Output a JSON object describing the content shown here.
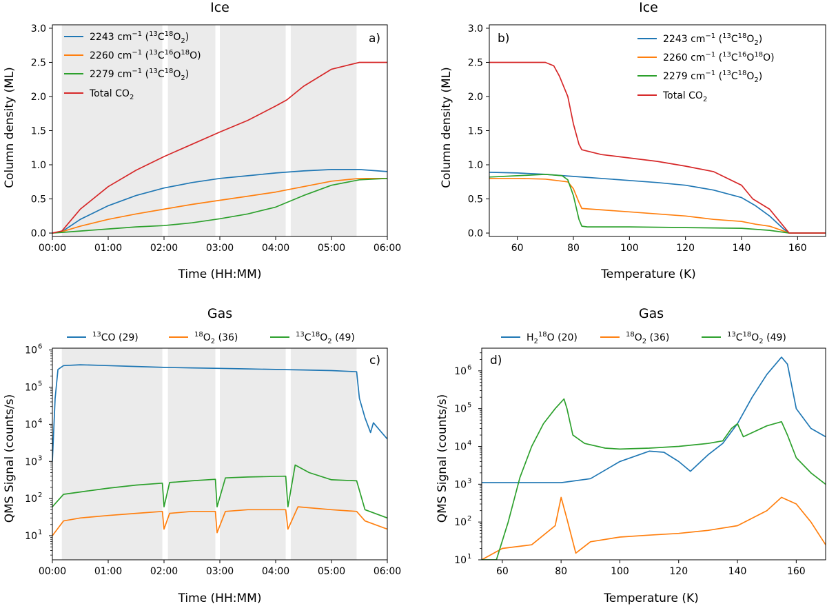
{
  "figure": {
    "panels": [
      {
        "id": "a",
        "panel_label": "a)",
        "title": "Ice",
        "xlabel": "Time (HH:MM)",
        "ylabel": "Column density (ML)",
        "x_ticks": [
          "00:00",
          "01:00",
          "02:00",
          "03:00",
          "04:00",
          "05:00",
          "06:00"
        ],
        "y_ticks": [
          "0.0",
          "0.5",
          "1.0",
          "1.5",
          "2.0",
          "2.5",
          "3.0"
        ],
        "legend": [
          {
            "main": "2243 cm",
            "exp": "−1",
            "mid": " (",
            "iso1": "13",
            "el1": "C",
            "iso2": "18",
            "el2": "O",
            "sub": "2",
            "end": ")"
          },
          {
            "main": "2260 cm",
            "exp": "−1",
            "mid": " (",
            "iso1": "13",
            "el1": "C",
            "iso2": "16",
            "el2": "O",
            "iso3": "18",
            "el3": "O",
            "end": ")"
          },
          {
            "main": "2279 cm",
            "exp": "−1",
            "mid": " (",
            "iso1": "13",
            "el1": "C",
            "iso2": "18",
            "el2": "O",
            "sub": "2",
            "end": ")"
          },
          {
            "main": "Total CO",
            "sub": "2"
          }
        ]
      },
      {
        "id": "b",
        "panel_label": "b)",
        "title": "Ice",
        "xlabel": "Temperature (K)",
        "ylabel": "Column density (ML)",
        "x_ticks": [
          "60",
          "80",
          "100",
          "120",
          "140",
          "160"
        ],
        "y_ticks": [
          "0.0",
          "0.5",
          "1.0",
          "1.5",
          "2.0",
          "2.5",
          "3.0"
        ],
        "legend": [
          {
            "main": "2243 cm",
            "exp": "−1",
            "mid": " (",
            "iso1": "13",
            "el1": "C",
            "iso2": "18",
            "el2": "O",
            "sub": "2",
            "end": ")"
          },
          {
            "main": "2260 cm",
            "exp": "−1",
            "mid": " (",
            "iso1": "13",
            "el1": "C",
            "iso2": "16",
            "el2": "O",
            "iso3": "18",
            "el3": "O",
            "end": ")"
          },
          {
            "main": "2279 cm",
            "exp": "−1",
            "mid": " (",
            "iso1": "13",
            "el1": "C",
            "iso2": "18",
            "el2": "O",
            "sub": "2",
            "end": ")"
          },
          {
            "main": "Total CO",
            "sub": "2"
          }
        ]
      },
      {
        "id": "c",
        "panel_label": "c)",
        "title": "Gas",
        "xlabel": "Time (HH:MM)",
        "ylabel": "QMS Signal (counts/s)",
        "x_ticks": [
          "00:00",
          "01:00",
          "02:00",
          "03:00",
          "04:00",
          "05:00",
          "06:00"
        ],
        "y_ticks": [
          {
            "base": "10",
            "exp": "1"
          },
          {
            "base": "10",
            "exp": "2"
          },
          {
            "base": "10",
            "exp": "3"
          },
          {
            "base": "10",
            "exp": "4"
          },
          {
            "base": "10",
            "exp": "5"
          },
          {
            "base": "10",
            "exp": "6"
          }
        ],
        "legend": [
          {
            "pre": "13",
            "main": "CO (29)"
          },
          {
            "pre": "18",
            "main": "O",
            "sub": "2",
            "end": " (36)"
          },
          {
            "pre": "13",
            "main": "C",
            "iso2": "18",
            "el2": "O",
            "sub": "2",
            "end": " (49)"
          }
        ]
      },
      {
        "id": "d",
        "panel_label": "d)",
        "title": "Gas",
        "xlabel": "Temperature (K)",
        "ylabel": "QMS Signal (counts/s)",
        "x_ticks": [
          "60",
          "80",
          "100",
          "120",
          "140",
          "160"
        ],
        "y_ticks": [
          {
            "base": "10",
            "exp": "1"
          },
          {
            "base": "10",
            "exp": "2"
          },
          {
            "base": "10",
            "exp": "3"
          },
          {
            "base": "10",
            "exp": "4"
          },
          {
            "base": "10",
            "exp": "5"
          },
          {
            "base": "10",
            "exp": "6"
          }
        ],
        "legend": [
          {
            "main": "H",
            "sub": "2",
            "iso2": "18",
            "el2": "O",
            "end": " (20)"
          },
          {
            "pre": "18",
            "main": "O",
            "sub": "2",
            "end": " (36)"
          },
          {
            "pre": "13",
            "main": "C",
            "iso2": "18",
            "el2": "O",
            "sub": "2",
            "end": " (49)"
          }
        ]
      }
    ]
  },
  "chart_data": [
    {
      "type": "line",
      "panel": "a",
      "title": "Ice",
      "xlabel": "Time (HH:MM)",
      "ylabel": "Column density (ML)",
      "xlim_hours": [
        0,
        6
      ],
      "ylim": [
        -0.05,
        3.05
      ],
      "shaded_intervals_hours": [
        [
          0.17,
          1.97
        ],
        [
          2.07,
          2.92
        ],
        [
          3.0,
          4.18
        ],
        [
          4.27,
          5.45
        ]
      ],
      "colors": [
        "#1f77b4",
        "#ff7f0e",
        "#2ca02c",
        "#d62728"
      ],
      "series": [
        {
          "name": "2243 cm-1 (13C18O2)",
          "x": [
            0,
            0.17,
            0.5,
            1,
            1.5,
            2,
            2.5,
            3,
            3.5,
            4,
            4.5,
            5,
            5.5,
            6
          ],
          "y": [
            0,
            0.02,
            0.2,
            0.4,
            0.55,
            0.66,
            0.74,
            0.8,
            0.84,
            0.88,
            0.91,
            0.93,
            0.93,
            0.9
          ]
        },
        {
          "name": "2260 cm-1 (13C16O18O)",
          "x": [
            0,
            0.17,
            0.5,
            1,
            1.5,
            2,
            2.5,
            3,
            3.5,
            4,
            4.5,
            5,
            5.5,
            6
          ],
          "y": [
            0,
            0.02,
            0.1,
            0.2,
            0.28,
            0.35,
            0.42,
            0.48,
            0.54,
            0.6,
            0.68,
            0.76,
            0.8,
            0.8
          ]
        },
        {
          "name": "2279 cm-1 (13C18O2)",
          "x": [
            0,
            0.17,
            0.5,
            1,
            1.5,
            2,
            2.5,
            3,
            3.5,
            4,
            4.5,
            5,
            5.5,
            6
          ],
          "y": [
            0,
            0.01,
            0.03,
            0.06,
            0.09,
            0.11,
            0.15,
            0.21,
            0.28,
            0.38,
            0.55,
            0.7,
            0.78,
            0.8
          ]
        },
        {
          "name": "Total CO2",
          "x": [
            0,
            0.17,
            0.5,
            1,
            1.5,
            2,
            2.5,
            3,
            3.5,
            4,
            4.2,
            4.5,
            5,
            5.5,
            6
          ],
          "y": [
            0,
            0.03,
            0.35,
            0.68,
            0.92,
            1.12,
            1.3,
            1.48,
            1.65,
            1.86,
            1.95,
            2.15,
            2.4,
            2.5,
            2.5
          ]
        }
      ]
    },
    {
      "type": "line",
      "panel": "b",
      "title": "Ice",
      "xlabel": "Temperature (K)",
      "ylabel": "Column density (ML)",
      "xlim": [
        50,
        170
      ],
      "ylim": [
        -0.05,
        3.05
      ],
      "colors": [
        "#1f77b4",
        "#ff7f0e",
        "#2ca02c",
        "#d62728"
      ],
      "series": [
        {
          "name": "2243 cm-1 (13C18O2)",
          "x": [
            50,
            60,
            70,
            80,
            90,
            100,
            110,
            120,
            130,
            140,
            145,
            150,
            155,
            157,
            170
          ],
          "y": [
            0.89,
            0.88,
            0.86,
            0.83,
            0.8,
            0.77,
            0.74,
            0.7,
            0.63,
            0.52,
            0.4,
            0.25,
            0.06,
            0,
            0
          ]
        },
        {
          "name": "2260 cm-1 (13C16O18O)",
          "x": [
            50,
            60,
            70,
            78,
            80,
            82,
            83,
            90,
            100,
            110,
            120,
            130,
            140,
            145,
            150,
            155,
            157,
            170
          ],
          "y": [
            0.8,
            0.8,
            0.79,
            0.75,
            0.65,
            0.45,
            0.36,
            0.34,
            0.31,
            0.28,
            0.25,
            0.2,
            0.17,
            0.13,
            0.1,
            0.03,
            0,
            0
          ]
        },
        {
          "name": "2279 cm-1 (13C18O2)",
          "x": [
            50,
            60,
            70,
            76,
            78,
            80,
            82,
            83,
            85,
            100,
            120,
            140,
            150,
            157,
            170
          ],
          "y": [
            0.82,
            0.84,
            0.86,
            0.84,
            0.78,
            0.55,
            0.2,
            0.1,
            0.09,
            0.09,
            0.08,
            0.07,
            0.04,
            0,
            0
          ]
        },
        {
          "name": "Total CO2",
          "x": [
            50,
            55,
            60,
            65,
            70,
            73,
            75,
            78,
            80,
            82,
            83,
            85,
            90,
            100,
            110,
            120,
            130,
            140,
            144,
            150,
            154,
            157,
            170
          ],
          "y": [
            2.5,
            2.5,
            2.5,
            2.5,
            2.5,
            2.45,
            2.3,
            2.0,
            1.6,
            1.3,
            1.22,
            1.2,
            1.15,
            1.1,
            1.05,
            0.98,
            0.9,
            0.7,
            0.5,
            0.35,
            0.15,
            0,
            0
          ]
        }
      ]
    },
    {
      "type": "line",
      "panel": "c",
      "title": "Gas",
      "xlabel": "Time (HH:MM)",
      "ylabel": "QMS Signal (counts/s)",
      "yscale": "log",
      "xlim_hours": [
        0,
        6
      ],
      "ylim_log10": [
        0.35,
        6.05
      ],
      "shaded_intervals_hours": [
        [
          0.17,
          1.97
        ],
        [
          2.07,
          2.92
        ],
        [
          3.0,
          4.18
        ],
        [
          4.27,
          5.45
        ]
      ],
      "colors": [
        "#1f77b4",
        "#ff7f0e",
        "#2ca02c"
      ],
      "series": [
        {
          "name": "13CO (29)",
          "x": [
            0,
            0.05,
            0.1,
            0.2,
            0.5,
            1,
            1.5,
            2,
            2.5,
            3,
            3.5,
            4,
            4.5,
            5,
            5.45,
            5.5,
            5.6,
            5.7,
            5.75,
            5.8,
            5.9,
            6
          ],
          "y": [
            1000,
            50000,
            300000,
            380000,
            400000,
            380000,
            360000,
            340000,
            330000,
            320000,
            310000,
            300000,
            290000,
            280000,
            260000,
            50000,
            15000,
            6000,
            11000,
            9000,
            6000,
            4000
          ]
        },
        {
          "name": "18O2 (36)",
          "x": [
            0,
            0.2,
            0.5,
            1,
            1.5,
            1.97,
            2.0,
            2.1,
            2.5,
            2.92,
            2.95,
            3.1,
            3.5,
            4.18,
            4.22,
            4.4,
            5,
            5.45,
            5.6,
            6
          ],
          "y": [
            10,
            25,
            30,
            35,
            40,
            45,
            15,
            40,
            45,
            45,
            12,
            45,
            50,
            50,
            15,
            60,
            50,
            45,
            25,
            15
          ]
        },
        {
          "name": "13C18O2 (49)",
          "x": [
            0,
            0.2,
            0.5,
            1,
            1.5,
            1.97,
            2.0,
            2.1,
            2.5,
            2.92,
            2.95,
            3.1,
            3.5,
            4.18,
            4.22,
            4.35,
            4.6,
            5,
            5.45,
            5.6,
            6
          ],
          "y": [
            60,
            130,
            150,
            190,
            230,
            260,
            60,
            270,
            300,
            330,
            60,
            360,
            380,
            400,
            60,
            800,
            500,
            320,
            300,
            50,
            30
          ]
        }
      ]
    },
    {
      "type": "line",
      "panel": "d",
      "title": "Gas",
      "xlabel": "Temperature (K)",
      "ylabel": "QMS Signal (counts/s)",
      "yscale": "log",
      "xlim": [
        53,
        170
      ],
      "ylim_log10": [
        1,
        6.6
      ],
      "colors": [
        "#1f77b4",
        "#ff7f0e",
        "#2ca02c"
      ],
      "series": [
        {
          "name": "H2 18O (20)",
          "x": [
            53,
            60,
            70,
            80,
            90,
            100,
            110,
            115,
            120,
            124,
            130,
            135,
            140,
            145,
            150,
            155,
            157,
            160,
            165,
            170
          ],
          "y": [
            1100,
            1100,
            1100,
            1100,
            1400,
            4000,
            7500,
            7000,
            4000,
            2200,
            6000,
            12000,
            40000,
            200000,
            800000,
            2300000,
            1500000,
            100000,
            30000,
            18000
          ]
        },
        {
          "name": "18O2 (36)",
          "x": [
            53,
            60,
            70,
            78,
            80,
            82,
            85,
            90,
            100,
            110,
            120,
            130,
            140,
            150,
            155,
            160,
            165,
            170
          ],
          "y": [
            10,
            20,
            25,
            80,
            450,
            120,
            15,
            30,
            40,
            45,
            50,
            60,
            80,
            200,
            450,
            300,
            100,
            25
          ]
        },
        {
          "name": "13C18O2 (49)",
          "x": [
            53,
            58,
            62,
            66,
            70,
            74,
            78,
            81,
            82,
            84,
            88,
            95,
            100,
            110,
            120,
            130,
            135,
            138,
            140,
            142,
            150,
            155,
            157,
            160,
            165,
            170
          ],
          "y": [
            10,
            10,
            100,
            1500,
            10000,
            40000,
            100000,
            180000,
            100000,
            20000,
            12000,
            9000,
            8500,
            9000,
            10000,
            12000,
            14000,
            30000,
            40000,
            18000,
            35000,
            45000,
            20000,
            5000,
            2000,
            1000
          ]
        }
      ]
    }
  ]
}
